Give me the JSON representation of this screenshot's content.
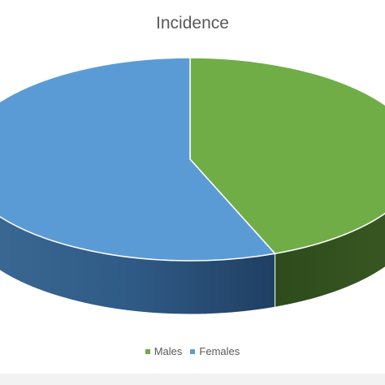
{
  "chart_data": {
    "type": "pie",
    "title": "Incidence",
    "legend_position": "bottom",
    "slices": [
      {
        "name": "Males",
        "value": 44,
        "color": "#70ad47",
        "side_color": "#3a5a24"
      },
      {
        "name": "Females",
        "value": 56,
        "color": "#5b9bd5",
        "side_color": "#2f5a86"
      }
    ]
  }
}
